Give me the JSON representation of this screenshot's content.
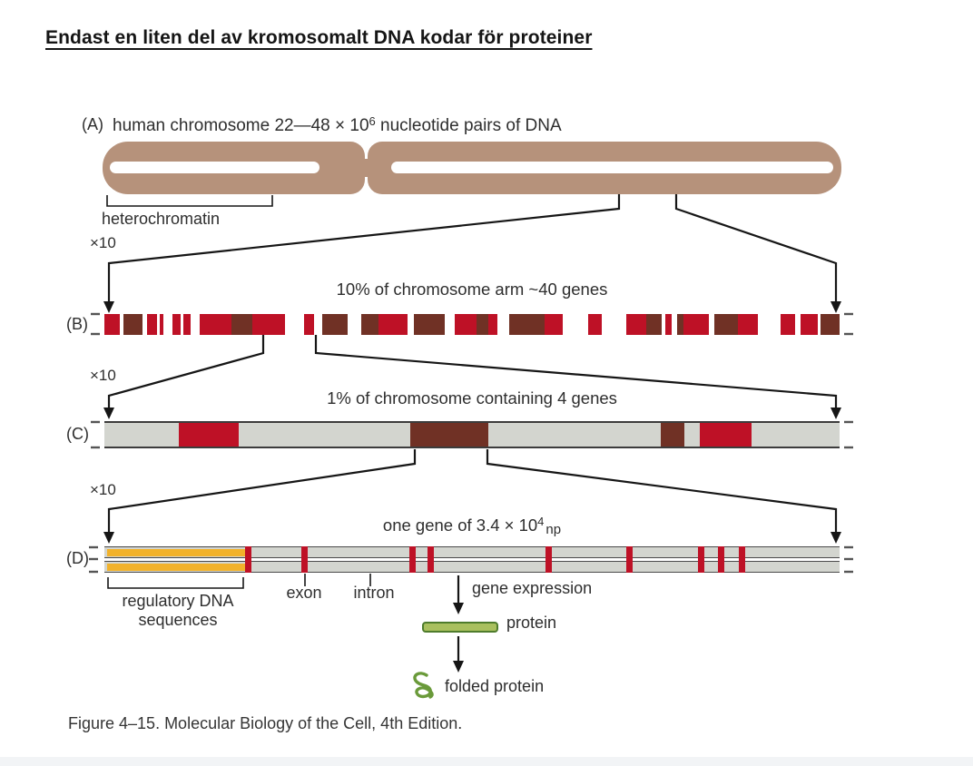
{
  "title": "Endast en liten del av kromosomalt DNA kodar för proteiner",
  "caption": "Figure 4–15. Molecular Biology of the Cell, 4th Edition.",
  "zoom_label": "×10",
  "panel_a": {
    "label": "(A)",
    "title_prefix": "human chromosome 22—48 × 10",
    "title_exponent": "6",
    "title_suffix": " nucleotide pairs of DNA",
    "heterochromatin": "heterochromatin"
  },
  "panel_b": {
    "label": "(B)",
    "title": "10% of chromosome arm ~40 genes",
    "segments": [
      {
        "c": "red",
        "w": 18
      },
      {
        "c": "white",
        "w": 4
      },
      {
        "c": "brown",
        "w": 23
      },
      {
        "c": "white",
        "w": 5
      },
      {
        "c": "red",
        "w": 12
      },
      {
        "c": "white",
        "w": 3
      },
      {
        "c": "red",
        "w": 5
      },
      {
        "c": "white",
        "w": 10
      },
      {
        "c": "red",
        "w": 10
      },
      {
        "c": "white",
        "w": 3
      },
      {
        "c": "red",
        "w": 9
      },
      {
        "c": "white",
        "w": 10
      },
      {
        "c": "red",
        "w": 38
      },
      {
        "c": "brown",
        "w": 25
      },
      {
        "c": "red",
        "w": 38
      },
      {
        "c": "white",
        "w": 22
      },
      {
        "c": "red",
        "w": 12
      },
      {
        "c": "white",
        "w": 10
      },
      {
        "c": "brown",
        "w": 30
      },
      {
        "c": "white",
        "w": 16
      },
      {
        "c": "brown",
        "w": 20
      },
      {
        "c": "red",
        "w": 34
      },
      {
        "c": "white",
        "w": 8
      },
      {
        "c": "brown",
        "w": 36
      },
      {
        "c": "white",
        "w": 12
      },
      {
        "c": "red",
        "w": 26
      },
      {
        "c": "brown",
        "w": 14
      },
      {
        "c": "red",
        "w": 10
      },
      {
        "c": "white",
        "w": 14
      },
      {
        "c": "brown",
        "w": 42
      },
      {
        "c": "red",
        "w": 22
      },
      {
        "c": "white",
        "w": 30
      },
      {
        "c": "red",
        "w": 16
      },
      {
        "c": "white",
        "w": 28
      },
      {
        "c": "red",
        "w": 24
      },
      {
        "c": "brown",
        "w": 18
      },
      {
        "c": "white",
        "w": 4
      },
      {
        "c": "red",
        "w": 8
      },
      {
        "c": "white",
        "w": 6
      },
      {
        "c": "brown",
        "w": 8
      },
      {
        "c": "red",
        "w": 30
      },
      {
        "c": "white",
        "w": 6
      },
      {
        "c": "brown",
        "w": 28
      },
      {
        "c": "red",
        "w": 24
      },
      {
        "c": "white",
        "w": 26
      },
      {
        "c": "red",
        "w": 18
      },
      {
        "c": "white",
        "w": 6
      },
      {
        "c": "red",
        "w": 20
      },
      {
        "c": "white",
        "w": 4
      },
      {
        "c": "brown",
        "w": 22
      }
    ]
  },
  "panel_c": {
    "label": "(C)",
    "title": "1% of chromosome containing 4 genes",
    "segments": [
      {
        "c": "gray",
        "w": 82
      },
      {
        "c": "red",
        "w": 66
      },
      {
        "c": "gray",
        "w": 189
      },
      {
        "c": "brown",
        "w": 86
      },
      {
        "c": "gray",
        "w": 190
      },
      {
        "c": "brown",
        "w": 26
      },
      {
        "c": "gray",
        "w": 17
      },
      {
        "c": "red",
        "w": 57
      },
      {
        "c": "gray",
        "w": 97
      }
    ]
  },
  "panel_d": {
    "label": "(D)",
    "title_prefix": "one gene of 3.4 × 10",
    "title_exponent": "4",
    "title_suffix": "np",
    "regulatory_width_pct": 19,
    "exon_marks_pct": [
      19.1,
      26.8,
      41.5,
      43.9,
      60.0,
      71.0,
      80.7,
      83.5,
      86.3
    ]
  },
  "annotations": {
    "regulatory_line1": "regulatory DNA",
    "regulatory_line2": "sequences",
    "exon": "exon",
    "intron": "intron",
    "gene_expression": "gene expression",
    "protein": "protein",
    "folded_protein": "folded protein"
  },
  "colors": {
    "chromosome_tan": "#b6927b",
    "band_red": "#be1126",
    "band_brown": "#703125",
    "bar_gray": "#d3d5cf",
    "regulatory_orange": "#f2b22b",
    "protein_green": "#a9c05e",
    "protein_green_dark": "#4e7c2c",
    "line_ink": "#1a1a1a"
  }
}
